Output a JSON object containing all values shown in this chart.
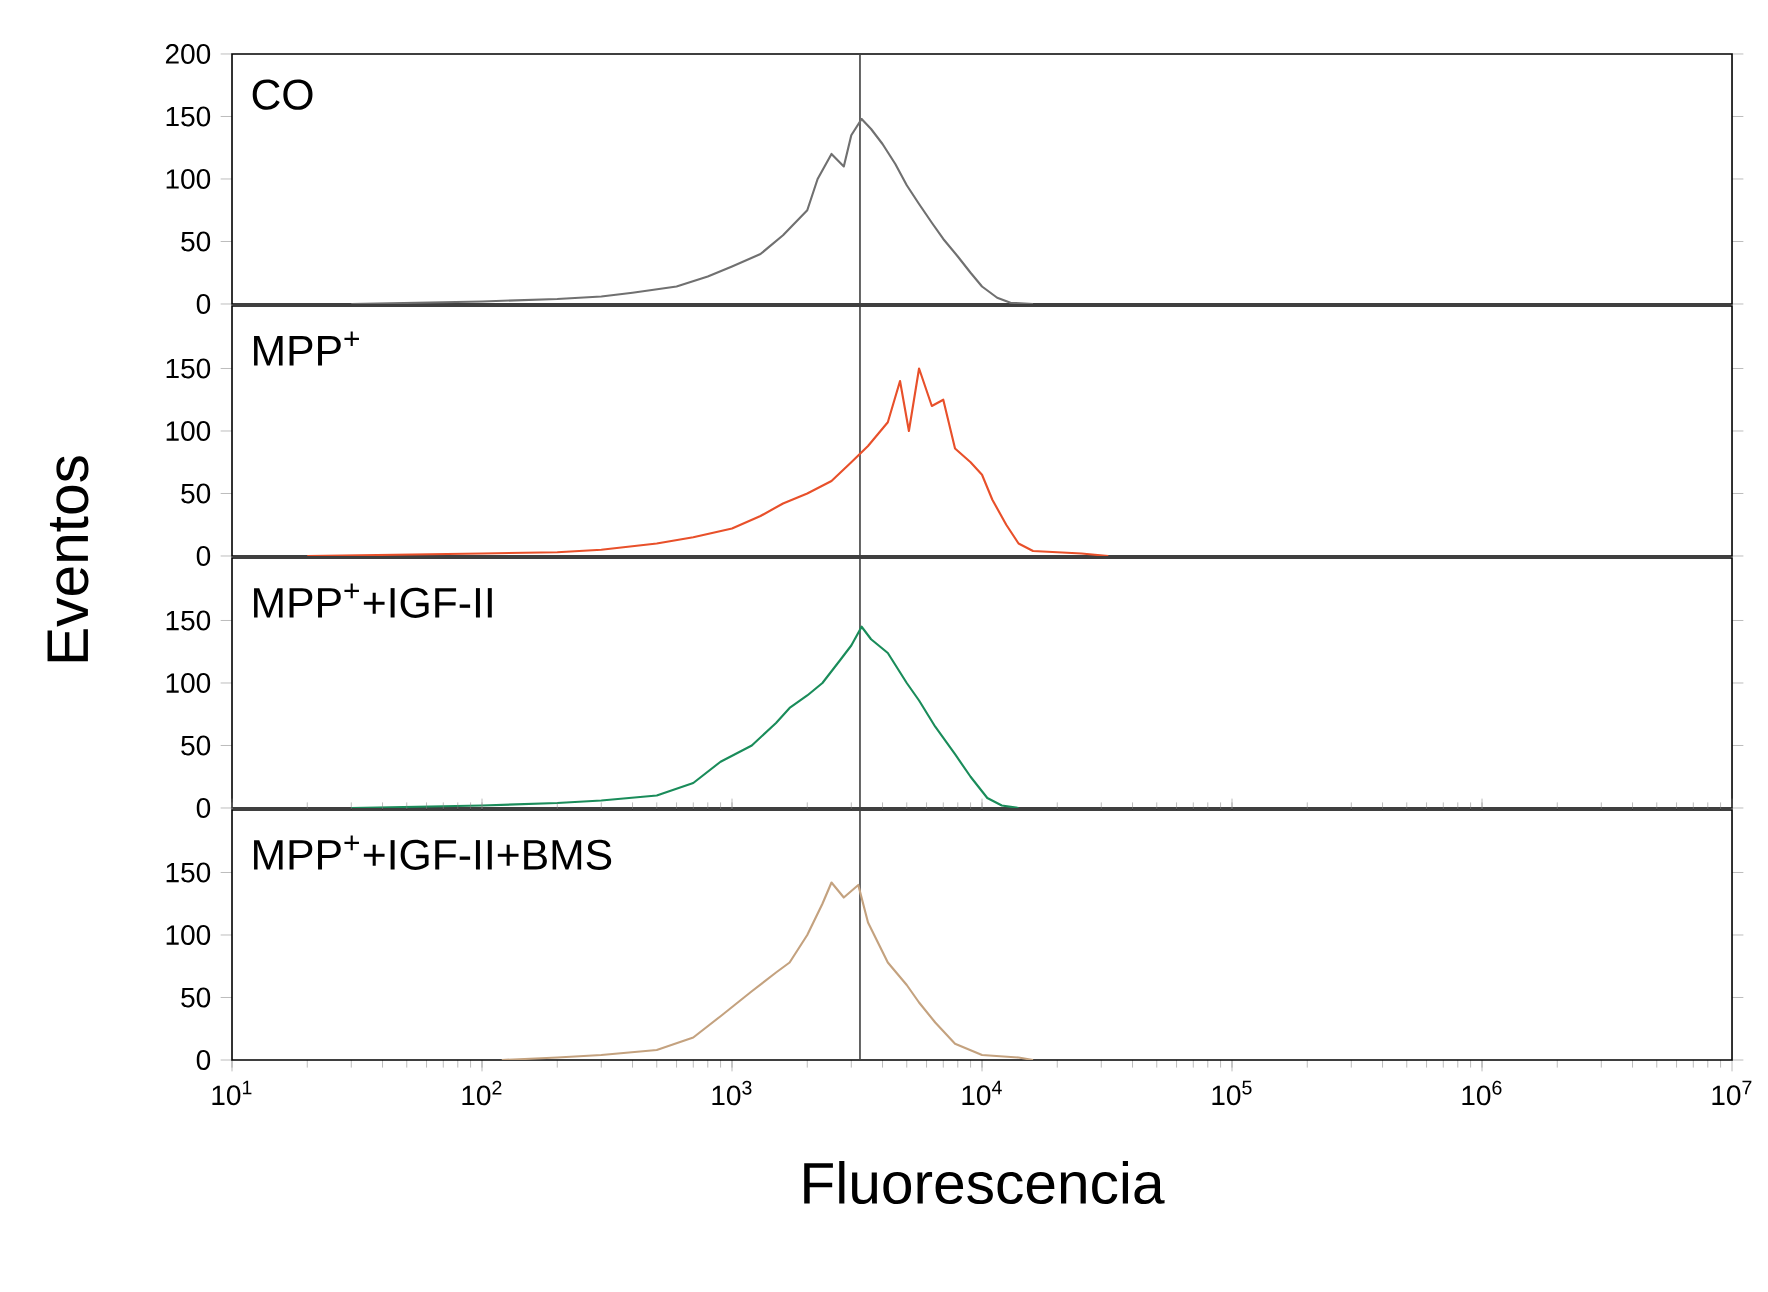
{
  "chart_data": [
    {
      "type": "line",
      "log": "x",
      "xlim": [
        10,
        10000000
      ],
      "ylim": [
        0,
        200
      ],
      "yticks": [
        0,
        50,
        100,
        150,
        200
      ],
      "tick_labels": "y",
      "ylabel": "Eventos",
      "ref_lines": [
        {
          "axis": "x",
          "value": 3250
        }
      ],
      "series": [
        {
          "name": "CO",
          "color": "#707070",
          "x": [
            30,
            100,
            200,
            300,
            400,
            600,
            800,
            1000,
            1300,
            1600,
            2000,
            2200,
            2500,
            2800,
            3000,
            3300,
            3600,
            4000,
            4500,
            5000,
            5600,
            6300,
            7000,
            8000,
            9000,
            10000,
            11500,
            13000,
            16000
          ],
          "values": [
            0,
            2,
            4,
            6,
            9,
            14,
            22,
            30,
            40,
            55,
            75,
            100,
            120,
            110,
            135,
            148,
            140,
            128,
            112,
            95,
            80,
            65,
            52,
            38,
            25,
            14,
            5,
            1,
            0
          ]
        }
      ]
    },
    {
      "type": "line",
      "log": "x",
      "xlim": [
        10,
        10000000
      ],
      "ylim": [
        0,
        200
      ],
      "yticks": [
        0,
        50,
        100,
        150
      ],
      "tick_labels": "y",
      "ref_lines": [
        {
          "axis": "x",
          "value": 3250
        }
      ],
      "series": [
        {
          "name": "MPP$^{+}$",
          "color": "#e8502a",
          "x": [
            20,
            100,
            200,
            300,
            500,
            700,
            1000,
            1300,
            1600,
            2000,
            2500,
            3000,
            3500,
            4200,
            4700,
            5100,
            5600,
            6300,
            7000,
            7800,
            9000,
            10000,
            11000,
            12500,
            14000,
            16000,
            20000,
            25000,
            32000
          ],
          "values": [
            0,
            2,
            3,
            5,
            10,
            15,
            22,
            32,
            42,
            50,
            60,
            75,
            88,
            107,
            140,
            100,
            150,
            120,
            125,
            86,
            75,
            65,
            45,
            25,
            10,
            4,
            3,
            2,
            0
          ]
        }
      ]
    },
    {
      "type": "line",
      "log": "x",
      "xlim": [
        10,
        10000000
      ],
      "ylim": [
        0,
        200
      ],
      "yticks": [
        0,
        50,
        100,
        150
      ],
      "tick_labels": "y",
      "ref_lines": [
        {
          "axis": "x",
          "value": 3250
        }
      ],
      "series": [
        {
          "name": "MPP$^{+}$+IGF-II",
          "color": "#1a8c5a",
          "x": [
            30,
            100,
            200,
            300,
            500,
            700,
            900,
            1200,
            1500,
            1700,
            2000,
            2300,
            2700,
            3000,
            3300,
            3600,
            4200,
            5000,
            5600,
            6500,
            7800,
            9000,
            10500,
            12000,
            14000
          ],
          "values": [
            0,
            2,
            4,
            6,
            10,
            20,
            37,
            50,
            68,
            80,
            90,
            100,
            118,
            130,
            145,
            135,
            124,
            100,
            86,
            65,
            43,
            25,
            8,
            2,
            0
          ]
        }
      ]
    },
    {
      "type": "line",
      "log": "x",
      "xlim": [
        10,
        10000000
      ],
      "ylim": [
        0,
        200
      ],
      "yticks": [
        0,
        50,
        100,
        150
      ],
      "xlabel": "Fluorescencia",
      "xticks": [
        {
          "value": 10,
          "label": "10$^{1}$"
        },
        {
          "value": 100,
          "label": "10$^{2}$"
        },
        {
          "value": 1000,
          "label": "10$^{3}$"
        },
        {
          "value": 10000,
          "label": "10$^{4}$"
        },
        {
          "value": 100000,
          "label": "10$^{5}$"
        },
        {
          "value": 1000000,
          "label": "10$^{6}$"
        },
        {
          "value": 10000000,
          "label": "10$^{7}$"
        }
      ],
      "ref_lines": [
        {
          "axis": "x",
          "value": 3250
        }
      ],
      "series": [
        {
          "name": "MPP$^{+}$+IGF-II+BMS",
          "color": "#c4a27f",
          "x": [
            120,
            200,
            300,
            500,
            700,
            900,
            1200,
            1500,
            1700,
            2000,
            2300,
            2500,
            2800,
            3200,
            3500,
            4200,
            5000,
            5600,
            6500,
            7800,
            10000,
            14000,
            16000
          ],
          "values": [
            0,
            2,
            4,
            8,
            18,
            35,
            55,
            70,
            78,
            100,
            125,
            142,
            130,
            140,
            110,
            78,
            60,
            46,
            30,
            13,
            4,
            2,
            0
          ]
        }
      ]
    }
  ]
}
